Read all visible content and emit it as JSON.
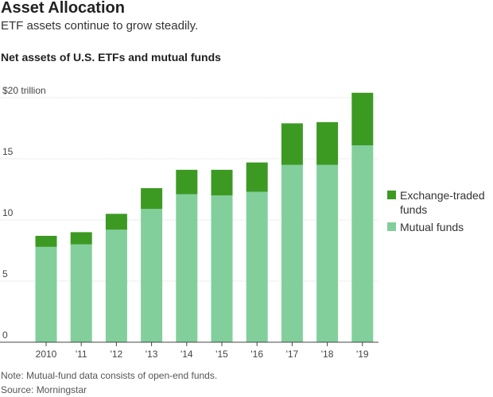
{
  "header": {
    "headline": "Asset Allocation",
    "subhead": "ETF assets continue to grow steadily.",
    "chart_title": "Net assets of U.S. ETFs and mutual funds"
  },
  "footer": {
    "note": "Note: Mutual-fund data consists of open-end funds.",
    "source": "Source: Morningstar"
  },
  "colors": {
    "etf": "#3c9a23",
    "mutual_funds": "#82cf9c",
    "gridline": "#dcdcdc",
    "axis": "#444444"
  },
  "chart_data": {
    "type": "bar",
    "stacked": true,
    "categories": [
      "2010",
      "'11",
      "'12",
      "'13",
      "'14",
      "'15",
      "'16",
      "'17",
      "'18",
      "'19"
    ],
    "series": [
      {
        "name": "Mutual funds",
        "values": [
          7.8,
          8.0,
          9.2,
          10.9,
          12.1,
          12.0,
          12.3,
          14.5,
          14.5,
          16.1
        ]
      },
      {
        "name": "Exchange-traded funds",
        "values": [
          0.9,
          1.0,
          1.3,
          1.7,
          2.0,
          2.1,
          2.4,
          3.4,
          3.5,
          4.3
        ]
      }
    ],
    "y_ticks": [
      0,
      5,
      10,
      15,
      20
    ],
    "y_tick_labels": [
      "0",
      "5",
      "10",
      "15",
      "$20 trillion"
    ],
    "ylim": [
      0,
      20
    ],
    "grid": true,
    "legend_position": "right"
  }
}
